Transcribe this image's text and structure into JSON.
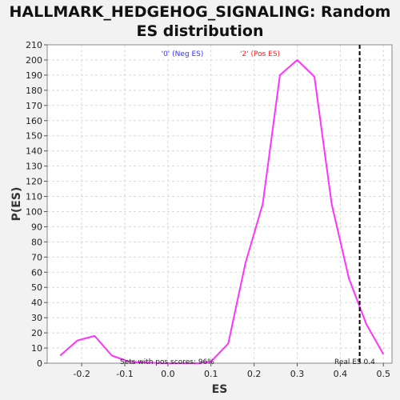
{
  "chart_data": {
    "type": "line",
    "title_line1": "HALLMARK_HEDGEHOG_SIGNALING: Random",
    "title_line2": "ES distribution",
    "xlabel": "ES",
    "ylabel": "P(ES)",
    "xlim": [
      -0.28,
      0.52
    ],
    "ylim": [
      0,
      210
    ],
    "x_ticks": [
      -0.2,
      -0.1,
      0.0,
      0.1,
      0.2,
      0.3,
      0.4,
      0.5
    ],
    "x_tick_labels": [
      "-0.2",
      "-0.1",
      "0.0",
      "0.1",
      "0.2",
      "0.3",
      "0.4",
      "0.5"
    ],
    "y_ticks": [
      0,
      10,
      20,
      30,
      40,
      50,
      60,
      70,
      80,
      90,
      100,
      110,
      120,
      130,
      140,
      150,
      160,
      170,
      180,
      190,
      200,
      210
    ],
    "grid": true,
    "series": [
      {
        "color": "#ff33ff",
        "x": [
          -0.25,
          -0.21,
          -0.17,
          -0.13,
          -0.09,
          -0.05,
          -0.01,
          0.03,
          0.07,
          0.1,
          0.14,
          0.18,
          0.22,
          0.26,
          0.3,
          0.34,
          0.38,
          0.42,
          0.46,
          0.5
        ],
        "y": [
          5,
          15,
          18,
          5,
          1,
          0.5,
          0,
          0,
          0,
          1,
          13,
          66,
          105,
          190,
          200,
          189,
          105,
          56,
          26,
          6
        ]
      }
    ],
    "legend": [
      {
        "label": "'0' (Neg ES)",
        "color": "#3333ff"
      },
      {
        "label": "'2' (Pos ES)",
        "color": "#ff2222"
      }
    ],
    "real_es_line": {
      "x": 0.445,
      "color": "#000000"
    },
    "annotations": {
      "pos_scores": "Sets with pos scores: 96%",
      "real_es": "Real ES 0.4"
    }
  }
}
